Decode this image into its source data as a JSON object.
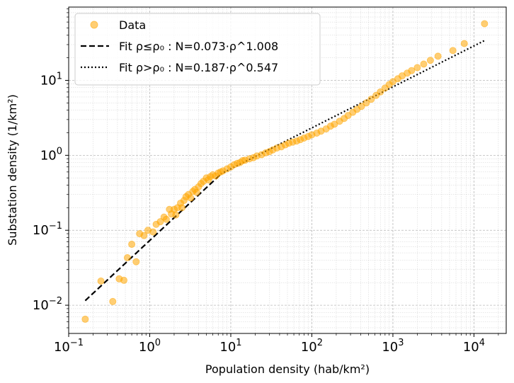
{
  "chart_data": {
    "type": "scatter",
    "xscale": "log",
    "yscale": "log",
    "xlim": [
      0.1,
      25000
    ],
    "ylim": [
      0.0042,
      95
    ],
    "xlabel": "Population density (hab/km²)",
    "ylabel": "Substation density (1/km²)",
    "grid": "major and minor",
    "legend_position": "top-left",
    "x_ticks": [
      {
        "value": 0.1,
        "base": "10",
        "exp": "−1"
      },
      {
        "value": 1,
        "base": "10",
        "exp": "0"
      },
      {
        "value": 10,
        "base": "10",
        "exp": "1"
      },
      {
        "value": 100,
        "base": "10",
        "exp": "2"
      },
      {
        "value": 1000,
        "base": "10",
        "exp": "3"
      },
      {
        "value": 10000,
        "base": "10",
        "exp": "4"
      }
    ],
    "y_ticks": [
      {
        "value": 0.01,
        "base": "10",
        "exp": "−2"
      },
      {
        "value": 0.1,
        "base": "10",
        "exp": "−1"
      },
      {
        "value": 1,
        "base": "10",
        "exp": "0"
      },
      {
        "value": 10,
        "base": "10",
        "exp": "1"
      }
    ],
    "series": [
      {
        "name": "Data",
        "kind": "scatter",
        "color": "#FFA500",
        "opacity": 0.55,
        "points": [
          [
            0.16,
            0.0065
          ],
          [
            0.25,
            0.021
          ],
          [
            0.35,
            0.0112
          ],
          [
            0.42,
            0.0225
          ],
          [
            0.48,
            0.0215
          ],
          [
            0.53,
            0.043
          ],
          [
            0.6,
            0.065
          ],
          [
            0.68,
            0.038
          ],
          [
            0.75,
            0.09
          ],
          [
            0.85,
            0.085
          ],
          [
            0.95,
            0.1
          ],
          [
            1.1,
            0.095
          ],
          [
            1.2,
            0.12
          ],
          [
            1.35,
            0.13
          ],
          [
            1.5,
            0.15
          ],
          [
            1.6,
            0.14
          ],
          [
            1.75,
            0.19
          ],
          [
            1.85,
            0.165
          ],
          [
            2.0,
            0.19
          ],
          [
            2.1,
            0.16
          ],
          [
            2.2,
            0.2
          ],
          [
            2.4,
            0.23
          ],
          [
            2.5,
            0.2
          ],
          [
            2.65,
            0.25
          ],
          [
            2.8,
            0.28
          ],
          [
            3.0,
            0.3
          ],
          [
            3.2,
            0.27
          ],
          [
            3.4,
            0.33
          ],
          [
            3.6,
            0.35
          ],
          [
            3.8,
            0.32
          ],
          [
            4.0,
            0.38
          ],
          [
            4.3,
            0.42
          ],
          [
            4.6,
            0.45
          ],
          [
            5.0,
            0.5
          ],
          [
            5.3,
            0.47
          ],
          [
            5.6,
            0.52
          ],
          [
            6.0,
            0.55
          ],
          [
            6.5,
            0.53
          ],
          [
            7.0,
            0.58
          ],
          [
            7.5,
            0.6
          ],
          [
            8.0,
            0.62
          ],
          [
            9.0,
            0.66
          ],
          [
            10,
            0.7
          ],
          [
            11,
            0.75
          ],
          [
            12,
            0.78
          ],
          [
            13,
            0.8
          ],
          [
            14,
            0.85
          ],
          [
            15,
            0.86
          ],
          [
            17,
            0.9
          ],
          [
            19,
            0.93
          ],
          [
            21,
            0.98
          ],
          [
            24,
            1.02
          ],
          [
            27,
            1.08
          ],
          [
            30,
            1.12
          ],
          [
            33,
            1.18
          ],
          [
            37,
            1.25
          ],
          [
            42,
            1.3
          ],
          [
            47,
            1.38
          ],
          [
            52,
            1.45
          ],
          [
            58,
            1.5
          ],
          [
            65,
            1.55
          ],
          [
            72,
            1.62
          ],
          [
            80,
            1.7
          ],
          [
            90,
            1.78
          ],
          [
            100,
            1.88
          ],
          [
            115,
            1.98
          ],
          [
            130,
            2.1
          ],
          [
            150,
            2.25
          ],
          [
            170,
            2.45
          ],
          [
            190,
            2.6
          ],
          [
            220,
            2.85
          ],
          [
            250,
            3.1
          ],
          [
            280,
            3.4
          ],
          [
            320,
            3.75
          ],
          [
            360,
            4.1
          ],
          [
            410,
            4.5
          ],
          [
            470,
            5.0
          ],
          [
            540,
            5.6
          ],
          [
            620,
            6.3
          ],
          [
            700,
            7.0
          ],
          [
            800,
            7.9
          ],
          [
            900,
            8.8
          ],
          [
            1000,
            9.6
          ],
          [
            1150,
            10.5
          ],
          [
            1300,
            11.5
          ],
          [
            1500,
            12.5
          ],
          [
            1700,
            13.5
          ],
          [
            2000,
            14.8
          ],
          [
            2400,
            16.5
          ],
          [
            2900,
            18.5
          ],
          [
            3600,
            21.0
          ],
          [
            5500,
            25.0
          ],
          [
            7600,
            31.0
          ],
          [
            13500,
            57.0
          ]
        ]
      },
      {
        "name": "Fit ρ≤ρ₀ : N=0.073·ρ^1.008",
        "kind": "line",
        "dash": "dashed",
        "color": "#000000",
        "coef": 0.073,
        "exponent": 1.008,
        "x_range": [
          0.16,
          7.5
        ]
      },
      {
        "name": "Fit ρ>ρ₀ : N=0.187·ρ^0.547",
        "kind": "line",
        "dash": "dotted",
        "color": "#000000",
        "coef": 0.187,
        "exponent": 0.547,
        "x_range": [
          7.5,
          13500
        ]
      }
    ]
  }
}
